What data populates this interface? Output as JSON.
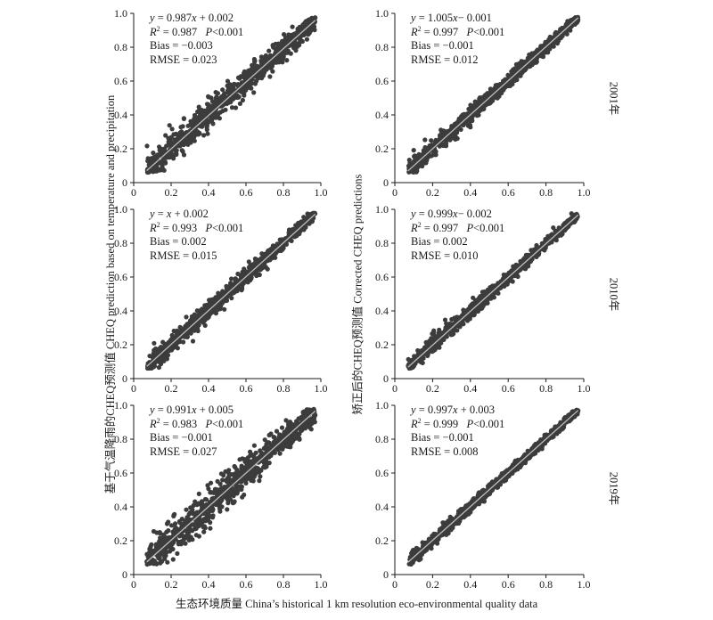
{
  "xlabel": "生态环境质量 China’s historical 1 km resolution eco-environmental quality data",
  "ylabel_left": "基于气温降雨的CHEQ预测值 CHEQ prediction based on temperature and precipitation",
  "ylabel_right": "矫正后的CHEQ预测值 Corrected CHEQ predictions",
  "row_labels": [
    "2001年",
    "2010年",
    "2019年"
  ],
  "chart_data": [
    {
      "type": "scatter",
      "row": "2001年",
      "column": "基于气温降雨的CHEQ预测值",
      "xlim": [
        0,
        1
      ],
      "ylim": [
        0,
        1
      ],
      "xticks": [
        "0",
        "0.2",
        "0.4",
        "0.6",
        "0.8",
        "1.0"
      ],
      "yticks": [
        "0",
        "0.2",
        "0.4",
        "0.6",
        "0.8",
        "1.0"
      ],
      "fit": {
        "slope": 0.987,
        "intercept": 0.002
      },
      "spread": 0.055,
      "eq_parts": [
        "y",
        " = 0.987",
        "x",
        " + 0.002"
      ],
      "r2": " = 0.987",
      "p": "P",
      "p_val": "<0.001",
      "bias": "Bias = −0.003",
      "rmse": "RMSE = 0.023"
    },
    {
      "type": "scatter",
      "row": "2001年",
      "column": "矫正后的CHEQ预测值",
      "xlim": [
        0,
        1
      ],
      "ylim": [
        0,
        1
      ],
      "xticks": [
        "0",
        "0.2",
        "0.4",
        "0.6",
        "0.8",
        "1.0"
      ],
      "yticks": [
        "0",
        "0.2",
        "0.4",
        "0.6",
        "0.8",
        "1.0"
      ],
      "fit": {
        "slope": 1.005,
        "intercept": -0.001
      },
      "spread": 0.03,
      "eq_parts": [
        "y",
        " = 1.005",
        "x",
        "−  0.001"
      ],
      "r2": " = 0.997",
      "p": "P",
      "p_val": "<0.001",
      "bias": "Bias = −0.001",
      "rmse": "RMSE = 0.012"
    },
    {
      "type": "scatter",
      "row": "2010年",
      "column": "基于气温降雨的CHEQ预测值",
      "xlim": [
        0,
        1
      ],
      "ylim": [
        0,
        1
      ],
      "xticks": [
        "0",
        "0.2",
        "0.4",
        "0.6",
        "0.8",
        "1.0"
      ],
      "yticks": [
        "0",
        "0.2",
        "0.4",
        "0.6",
        "0.8",
        "1.0"
      ],
      "fit": {
        "slope": 1.0,
        "intercept": 0.002
      },
      "spread": 0.035,
      "eq_parts": [
        "y",
        " = ",
        "x",
        " + 0.002"
      ],
      "r2": " = 0.993",
      "p": "P",
      "p_val": "<0.001",
      "bias": "Bias = 0.002",
      "rmse": "RMSE = 0.015"
    },
    {
      "type": "scatter",
      "row": "2010年",
      "column": "矫正后的CHEQ预测值",
      "xlim": [
        0,
        1
      ],
      "ylim": [
        0,
        1
      ],
      "xticks": [
        "0",
        "0.2",
        "0.4",
        "0.6",
        "0.8",
        "1.0"
      ],
      "yticks": [
        "0",
        "0.2",
        "0.4",
        "0.6",
        "0.8",
        "1.0"
      ],
      "fit": {
        "slope": 0.999,
        "intercept": -0.002
      },
      "spread": 0.027,
      "eq_parts": [
        "y",
        " = 0.999",
        "x",
        "−  0.002"
      ],
      "r2": " = 0.997",
      "p": "P",
      "p_val": "<0.001",
      "bias": "Bias = 0.002",
      "rmse": "RMSE = 0.010"
    },
    {
      "type": "scatter",
      "row": "2019年",
      "column": "基于气温降雨的CHEQ预测值",
      "xlim": [
        0,
        1
      ],
      "ylim": [
        0,
        1
      ],
      "xticks": [
        "0",
        "0.2",
        "0.4",
        "0.6",
        "0.8",
        "1.0"
      ],
      "yticks": [
        "0",
        "0.2",
        "0.4",
        "0.6",
        "0.8",
        "1.0"
      ],
      "fit": {
        "slope": 0.991,
        "intercept": 0.005
      },
      "spread": 0.065,
      "eq_parts": [
        "y",
        " = 0.991",
        "x",
        " + 0.005"
      ],
      "r2": " = 0.983",
      "p": "P",
      "p_val": "<0.001",
      "bias": "Bias = −0.001",
      "rmse": "RMSE = 0.027"
    },
    {
      "type": "scatter",
      "row": "2019年",
      "column": "矫正后的CHEQ预测值",
      "xlim": [
        0,
        1
      ],
      "ylim": [
        0,
        1
      ],
      "xticks": [
        "0",
        "0.2",
        "0.4",
        "0.6",
        "0.8",
        "1.0"
      ],
      "yticks": [
        "0",
        "0.2",
        "0.4",
        "0.6",
        "0.8",
        "1.0"
      ],
      "fit": {
        "slope": 0.997,
        "intercept": 0.003
      },
      "spread": 0.022,
      "eq_parts": [
        "y",
        " = 0.997",
        "x",
        " + 0.003"
      ],
      "r2": " = 0.999",
      "p": "P",
      "p_val": "<0.001",
      "bias": "Bias = −0.001",
      "rmse": "RMSE = 0.008"
    }
  ],
  "colors": {
    "points": "#3c3c3c",
    "fit_line": "#bdbdbd",
    "axis": "#1a1a1a"
  }
}
